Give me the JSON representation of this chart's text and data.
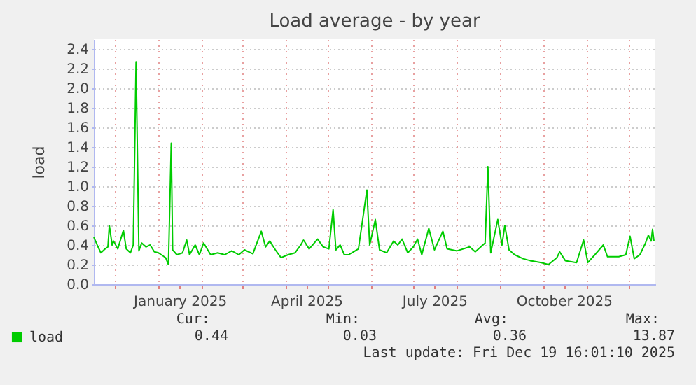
{
  "chart_data": {
    "type": "line",
    "title": "Load average - by year",
    "ylabel": "load",
    "x": [
      "2024-11-16",
      "2024-11-19",
      "2024-11-21",
      "2024-11-24",
      "2024-11-26",
      "2024-11-27",
      "2024-11-29",
      "2024-11-30",
      "2024-12-03",
      "2024-12-07",
      "2024-12-09",
      "2024-12-12",
      "2024-12-14",
      "2024-12-16",
      "2024-12-18",
      "2024-12-20",
      "2024-12-23",
      "2024-12-26",
      "2024-12-29",
      "2025-01-01",
      "2025-01-06",
      "2025-01-08",
      "2025-01-10",
      "2025-01-11",
      "2025-01-14",
      "2025-01-18",
      "2025-01-21",
      "2025-01-23",
      "2025-01-27",
      "2025-01-30",
      "2025-02-02",
      "2025-02-07",
      "2025-02-12",
      "2025-02-17",
      "2025-02-22",
      "2025-02-27",
      "2025-03-03",
      "2025-03-09",
      "2025-03-15",
      "2025-03-18",
      "2025-03-21",
      "2025-03-25",
      "2025-03-29",
      "2025-04-03",
      "2025-04-08",
      "2025-04-12",
      "2025-04-14",
      "2025-04-18",
      "2025-04-24",
      "2025-04-28",
      "2025-05-02",
      "2025-05-05",
      "2025-05-07",
      "2025-05-10",
      "2025-05-13",
      "2025-05-16",
      "2025-05-23",
      "2025-05-29",
      "2025-05-31",
      "2025-06-04",
      "2025-06-07",
      "2025-06-12",
      "2025-06-17",
      "2025-06-20",
      "2025-06-23",
      "2025-06-27",
      "2025-07-01",
      "2025-07-04",
      "2025-07-07",
      "2025-07-12",
      "2025-07-16",
      "2025-07-22",
      "2025-07-25",
      "2025-08-01",
      "2025-08-10",
      "2025-08-14",
      "2025-08-21",
      "2025-08-23",
      "2025-08-25",
      "2025-08-30",
      "2025-09-02",
      "2025-09-04",
      "2025-09-07",
      "2025-09-11",
      "2025-09-17",
      "2025-09-22",
      "2025-09-30",
      "2025-10-05",
      "2025-10-11",
      "2025-10-13",
      "2025-10-17",
      "2025-10-25",
      "2025-10-30",
      "2025-11-02",
      "2025-11-07",
      "2025-11-13",
      "2025-11-16",
      "2025-11-24",
      "2025-11-29",
      "2025-12-02",
      "2025-12-05",
      "2025-12-09",
      "2025-12-13",
      "2025-12-15",
      "2025-12-17",
      "2025-12-18",
      "2025-12-19"
    ],
    "series": [
      {
        "name": "load",
        "color": "#00cc00",
        "values": [
          0.48,
          0.38,
          0.32,
          0.36,
          0.38,
          0.6,
          0.4,
          0.44,
          0.36,
          0.55,
          0.36,
          0.32,
          0.4,
          2.27,
          0.34,
          0.42,
          0.38,
          0.4,
          0.33,
          0.32,
          0.27,
          0.2,
          1.44,
          0.35,
          0.3,
          0.32,
          0.45,
          0.3,
          0.4,
          0.3,
          0.42,
          0.3,
          0.32,
          0.3,
          0.34,
          0.3,
          0.35,
          0.31,
          0.54,
          0.38,
          0.44,
          0.35,
          0.27,
          0.3,
          0.32,
          0.4,
          0.45,
          0.36,
          0.46,
          0.38,
          0.36,
          0.76,
          0.35,
          0.4,
          0.3,
          0.3,
          0.36,
          0.96,
          0.4,
          0.66,
          0.35,
          0.32,
          0.44,
          0.4,
          0.46,
          0.32,
          0.38,
          0.46,
          0.3,
          0.57,
          0.35,
          0.54,
          0.36,
          0.34,
          0.38,
          0.33,
          0.42,
          1.2,
          0.32,
          0.66,
          0.4,
          0.6,
          0.35,
          0.3,
          0.26,
          0.24,
          0.22,
          0.2,
          0.27,
          0.33,
          0.24,
          0.22,
          0.45,
          0.22,
          0.3,
          0.4,
          0.28,
          0.28,
          0.3,
          0.49,
          0.26,
          0.3,
          0.42,
          0.5,
          0.44,
          0.56,
          0.44
        ]
      }
    ],
    "xlim": [
      "2024-11-16",
      "2025-12-20"
    ],
    "xticks": [
      {
        "value": "2024-12-01",
        "label": null
      },
      {
        "value": "2025-01-01",
        "label": null
      },
      {
        "value": "2025-01-16",
        "label": "January 2025"
      },
      {
        "value": "2025-02-01",
        "label": null
      },
      {
        "value": "2025-03-01",
        "label": null
      },
      {
        "value": "2025-04-01",
        "label": null
      },
      {
        "value": "2025-04-16",
        "label": "April 2025"
      },
      {
        "value": "2025-05-01",
        "label": null
      },
      {
        "value": "2025-06-01",
        "label": null
      },
      {
        "value": "2025-07-01",
        "label": null
      },
      {
        "value": "2025-07-16",
        "label": "July 2025"
      },
      {
        "value": "2025-08-01",
        "label": null
      },
      {
        "value": "2025-09-01",
        "label": null
      },
      {
        "value": "2025-10-01",
        "label": null
      },
      {
        "value": "2025-10-16",
        "label": "October 2025"
      },
      {
        "value": "2025-11-01",
        "label": null
      },
      {
        "value": "2025-12-01",
        "label": null
      }
    ],
    "ylim": [
      0,
      2.5
    ],
    "yticks": [
      {
        "value": 0,
        "label": "0.0"
      },
      {
        "value": 0.2,
        "label": "0.2"
      },
      {
        "value": 0.4,
        "label": "0.4"
      },
      {
        "value": 0.6,
        "label": "0.6"
      },
      {
        "value": 0.8,
        "label": "0.8"
      },
      {
        "value": 1,
        "label": "1.0"
      },
      {
        "value": 1.2,
        "label": "1.2"
      },
      {
        "value": 1.4,
        "label": "1.4"
      },
      {
        "value": 1.6,
        "label": "1.6"
      },
      {
        "value": 1.8,
        "label": "1.8"
      },
      {
        "value": 2,
        "label": "2.0"
      },
      {
        "value": 2.2,
        "label": "2.2"
      },
      {
        "value": 2.4,
        "label": "2.4"
      }
    ],
    "grid": true,
    "legend": "bottom left",
    "annotations": [
      "Cur:",
      "Min:",
      "Avg:",
      "Max:",
      "0.44",
      "0.03",
      "0.36",
      "13.87",
      "Last update: Fri Dec 19 16:01:10 2025"
    ]
  }
}
